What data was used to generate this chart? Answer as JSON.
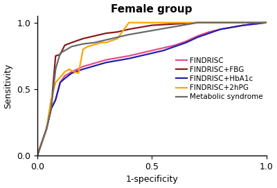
{
  "title": "Female group",
  "xlabel": "1-specificity",
  "ylabel": "Sensitivity",
  "xlim": [
    0.0,
    1.0
  ],
  "ylim": [
    0.0,
    1.05
  ],
  "xticks": [
    0.0,
    0.5,
    1.0
  ],
  "yticks": [
    0.0,
    0.5,
    1.0
  ],
  "FINDRISC": {
    "x": [
      0.0,
      0.02,
      0.04,
      0.06,
      0.08,
      0.1,
      0.12,
      0.15,
      0.2,
      0.3,
      0.4,
      0.5,
      0.55,
      0.6,
      0.65,
      0.7,
      0.75,
      0.8,
      0.9,
      1.0
    ],
    "y": [
      0.0,
      0.1,
      0.2,
      0.35,
      0.42,
      0.55,
      0.6,
      0.63,
      0.67,
      0.72,
      0.75,
      0.79,
      0.81,
      0.83,
      0.86,
      0.9,
      0.93,
      0.95,
      0.98,
      1.0
    ],
    "color": "#E8488A",
    "linewidth": 1.6,
    "label": "FINDRISC"
  },
  "FINDRISC_FBG": {
    "x": [
      0.0,
      0.02,
      0.04,
      0.06,
      0.08,
      0.1,
      0.12,
      0.15,
      0.2,
      0.25,
      0.3,
      0.35,
      0.4,
      0.5,
      0.6,
      0.7,
      0.8,
      0.9,
      1.0
    ],
    "y": [
      0.0,
      0.1,
      0.2,
      0.35,
      0.75,
      0.76,
      0.83,
      0.85,
      0.88,
      0.9,
      0.92,
      0.93,
      0.95,
      0.98,
      0.99,
      1.0,
      1.0,
      1.0,
      1.0
    ],
    "color": "#8B1A1A",
    "linewidth": 1.6,
    "label": "FINDRISC+FBG"
  },
  "FINDRISC_HbA1c": {
    "x": [
      0.0,
      0.02,
      0.04,
      0.06,
      0.08,
      0.1,
      0.12,
      0.15,
      0.2,
      0.3,
      0.4,
      0.5,
      0.55,
      0.6,
      0.65,
      0.7,
      0.75,
      0.8,
      0.9,
      1.0
    ],
    "y": [
      0.0,
      0.1,
      0.2,
      0.35,
      0.42,
      0.55,
      0.58,
      0.62,
      0.65,
      0.7,
      0.73,
      0.77,
      0.79,
      0.82,
      0.85,
      0.89,
      0.92,
      0.95,
      0.98,
      1.0
    ],
    "color": "#1F1FA8",
    "linewidth": 1.6,
    "label": "FINDRISC+HbA1c"
  },
  "FINDRISC_2hPG": {
    "x": [
      0.0,
      0.02,
      0.04,
      0.06,
      0.08,
      0.1,
      0.12,
      0.14,
      0.16,
      0.18,
      0.2,
      0.22,
      0.24,
      0.28,
      0.3,
      0.35,
      0.4,
      0.5,
      0.6,
      0.7,
      0.8,
      0.9,
      1.0
    ],
    "y": [
      0.0,
      0.1,
      0.2,
      0.42,
      0.55,
      0.59,
      0.63,
      0.65,
      0.63,
      0.62,
      0.8,
      0.82,
      0.83,
      0.85,
      0.85,
      0.88,
      1.0,
      1.0,
      1.0,
      1.0,
      1.0,
      1.0,
      1.0
    ],
    "color": "#FFA500",
    "linewidth": 1.6,
    "label": "FINDRISC+2hPG"
  },
  "MetabolicSyndrome": {
    "x": [
      0.0,
      0.02,
      0.04,
      0.06,
      0.08,
      0.1,
      0.12,
      0.15,
      0.2,
      0.25,
      0.3,
      0.35,
      0.4,
      0.5,
      0.6,
      0.7,
      0.8,
      0.9,
      1.0
    ],
    "y": [
      0.0,
      0.1,
      0.2,
      0.35,
      0.65,
      0.77,
      0.79,
      0.82,
      0.84,
      0.85,
      0.87,
      0.89,
      0.91,
      0.94,
      0.97,
      1.0,
      1.0,
      1.0,
      1.0
    ],
    "color": "#696969",
    "linewidth": 1.6,
    "label": "Metabolic syndrome"
  },
  "background_color": "#ffffff",
  "title_fontsize": 11,
  "axis_fontsize": 9,
  "legend_fontsize": 7.5
}
